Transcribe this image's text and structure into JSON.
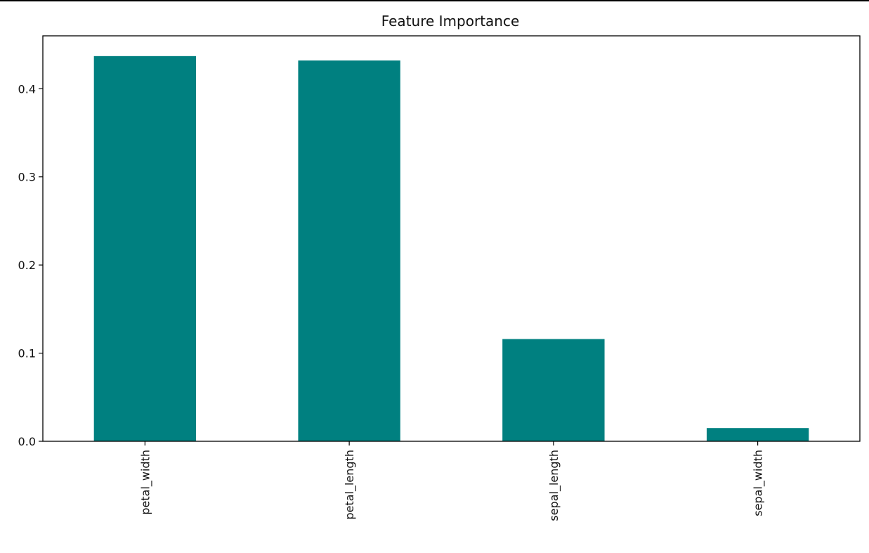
{
  "chart_data": {
    "type": "bar",
    "title": "Feature Importance",
    "xlabel": "",
    "ylabel": "",
    "categories": [
      "petal_width",
      "petal_length",
      "sepal_length",
      "sepal_width"
    ],
    "values": [
      0.437,
      0.432,
      0.116,
      0.015
    ],
    "ylim": [
      0,
      0.46
    ],
    "yticks": [
      0.0,
      0.1,
      0.2,
      0.3,
      0.4
    ],
    "ytick_labels": [
      "0.0",
      "0.1",
      "0.2",
      "0.3",
      "0.4"
    ],
    "bar_color": "#008080",
    "grid": false,
    "legend": "none"
  }
}
